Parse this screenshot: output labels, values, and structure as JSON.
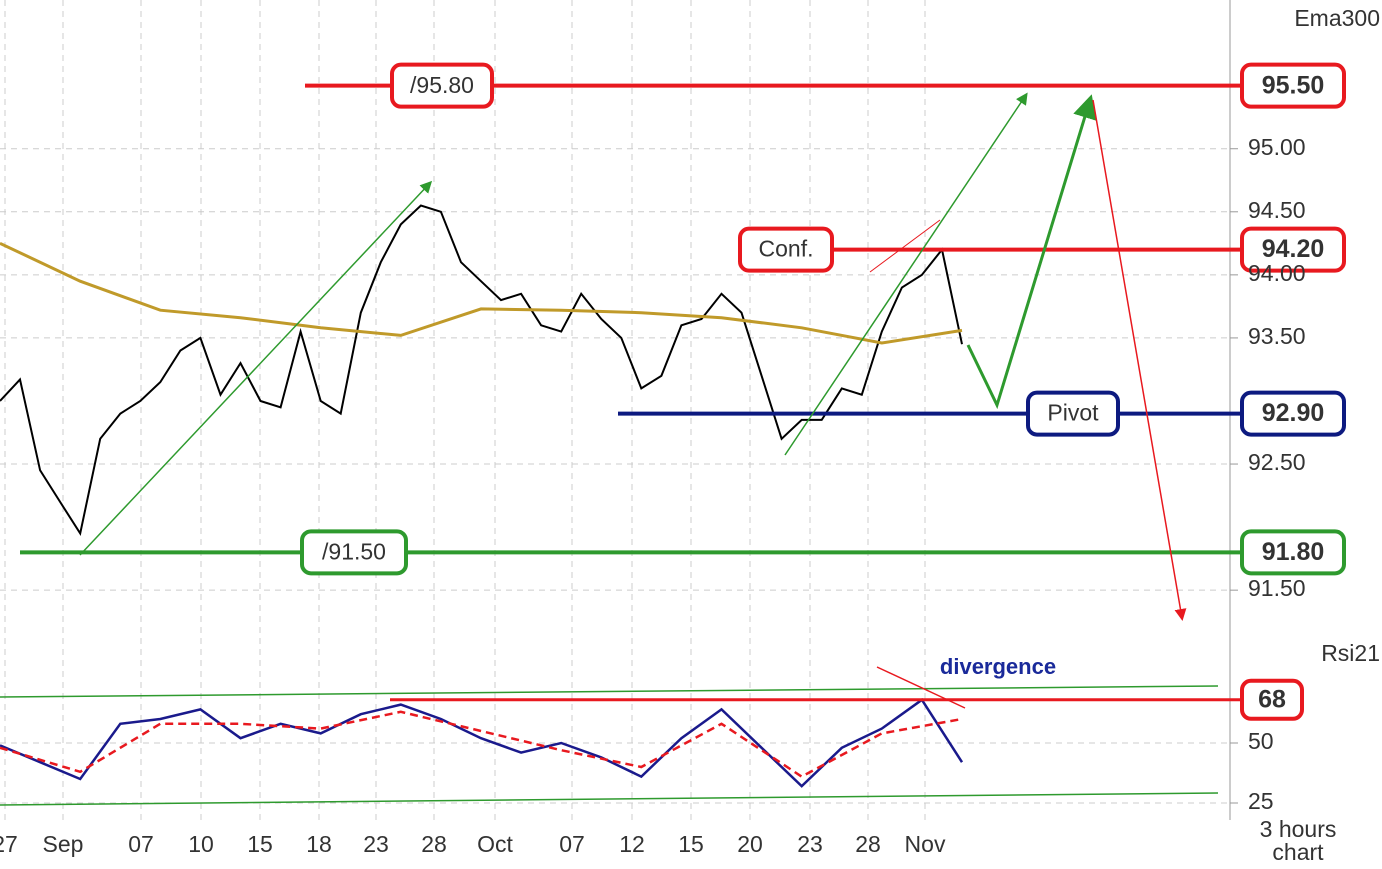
{
  "chart_data": {
    "type": "line",
    "x_labels": [
      "27",
      "Sep",
      "07",
      "10",
      "15",
      "18",
      "23",
      "28",
      "Oct",
      "07",
      "12",
      "15",
      "20",
      "23",
      "28",
      "Nov"
    ],
    "ylim": [
      91.2,
      96.1
    ],
    "yticks": [
      {
        "value": 91.5,
        "label": "91.50"
      },
      {
        "value": 92.5,
        "label": "92.50"
      },
      {
        "value": 93.5,
        "label": "93.50"
      },
      {
        "value": 94,
        "label": "94.00"
      },
      {
        "value": 94.5,
        "label": "94.50"
      },
      {
        "value": 95,
        "label": "95.00"
      }
    ],
    "grid": true,
    "series": [
      {
        "color": "#000000",
        "values": [
          93.0,
          93.17,
          92.45,
          92.2,
          91.95,
          92.7,
          92.9,
          93.0,
          93.15,
          93.4,
          93.5,
          93.05,
          93.3,
          93.0,
          92.95,
          93.55,
          93.0,
          92.9,
          93.7,
          94.1,
          94.4,
          94.55,
          94.5,
          94.1,
          93.95,
          93.8,
          93.85,
          93.6,
          93.55,
          93.85,
          93.65,
          93.5,
          93.1,
          93.2,
          93.6,
          93.65,
          93.85,
          93.7,
          93.2,
          92.7,
          92.85,
          92.85,
          93.1,
          93.05,
          93.55,
          93.9,
          94.0,
          94.2,
          93.45
        ]
      },
      {
        "name": "Ema300",
        "color": "#c09a2a",
        "values": [
          94.25,
          93.95,
          93.72,
          93.66,
          93.58,
          93.52,
          93.73,
          93.72,
          93.7,
          93.66,
          93.58,
          93.46,
          93.56
        ]
      }
    ],
    "levels": [
      {
        "value": 95.5,
        "label": "95.50",
        "tag": "/95.80",
        "color": "#e8191f"
      },
      {
        "value": 94.2,
        "label": "94.20",
        "tag": "Conf.",
        "color": "#e8191f"
      },
      {
        "value": 92.9,
        "label": "92.90",
        "tag": "Pivot",
        "color": "#0d1a80"
      },
      {
        "value": 91.8,
        "label": "91.80",
        "tag": "/91.50",
        "color": "#2e9a2e"
      }
    ],
    "timeframe": [
      "3 hours",
      "chart"
    ],
    "rsi": {
      "ylim": [
        20,
        80
      ],
      "yticks": [
        25,
        50
      ],
      "series": [
        {
          "name": "Rsi21",
          "color": "#1a1a8c",
          "values": [
            49,
            42,
            35,
            58,
            60,
            64,
            52,
            58,
            54,
            62,
            66,
            60,
            52,
            46,
            50,
            44,
            36,
            52,
            64,
            48,
            32,
            48,
            56,
            68,
            42
          ]
        },
        {
          "color": "#e8191f",
          "dash": true,
          "values": [
            48,
            38,
            58,
            58,
            56,
            63,
            55,
            47,
            40,
            58,
            36,
            54,
            60
          ]
        }
      ],
      "level": {
        "value": 68,
        "color": "#e8191f"
      },
      "annotation": "divergence"
    }
  }
}
